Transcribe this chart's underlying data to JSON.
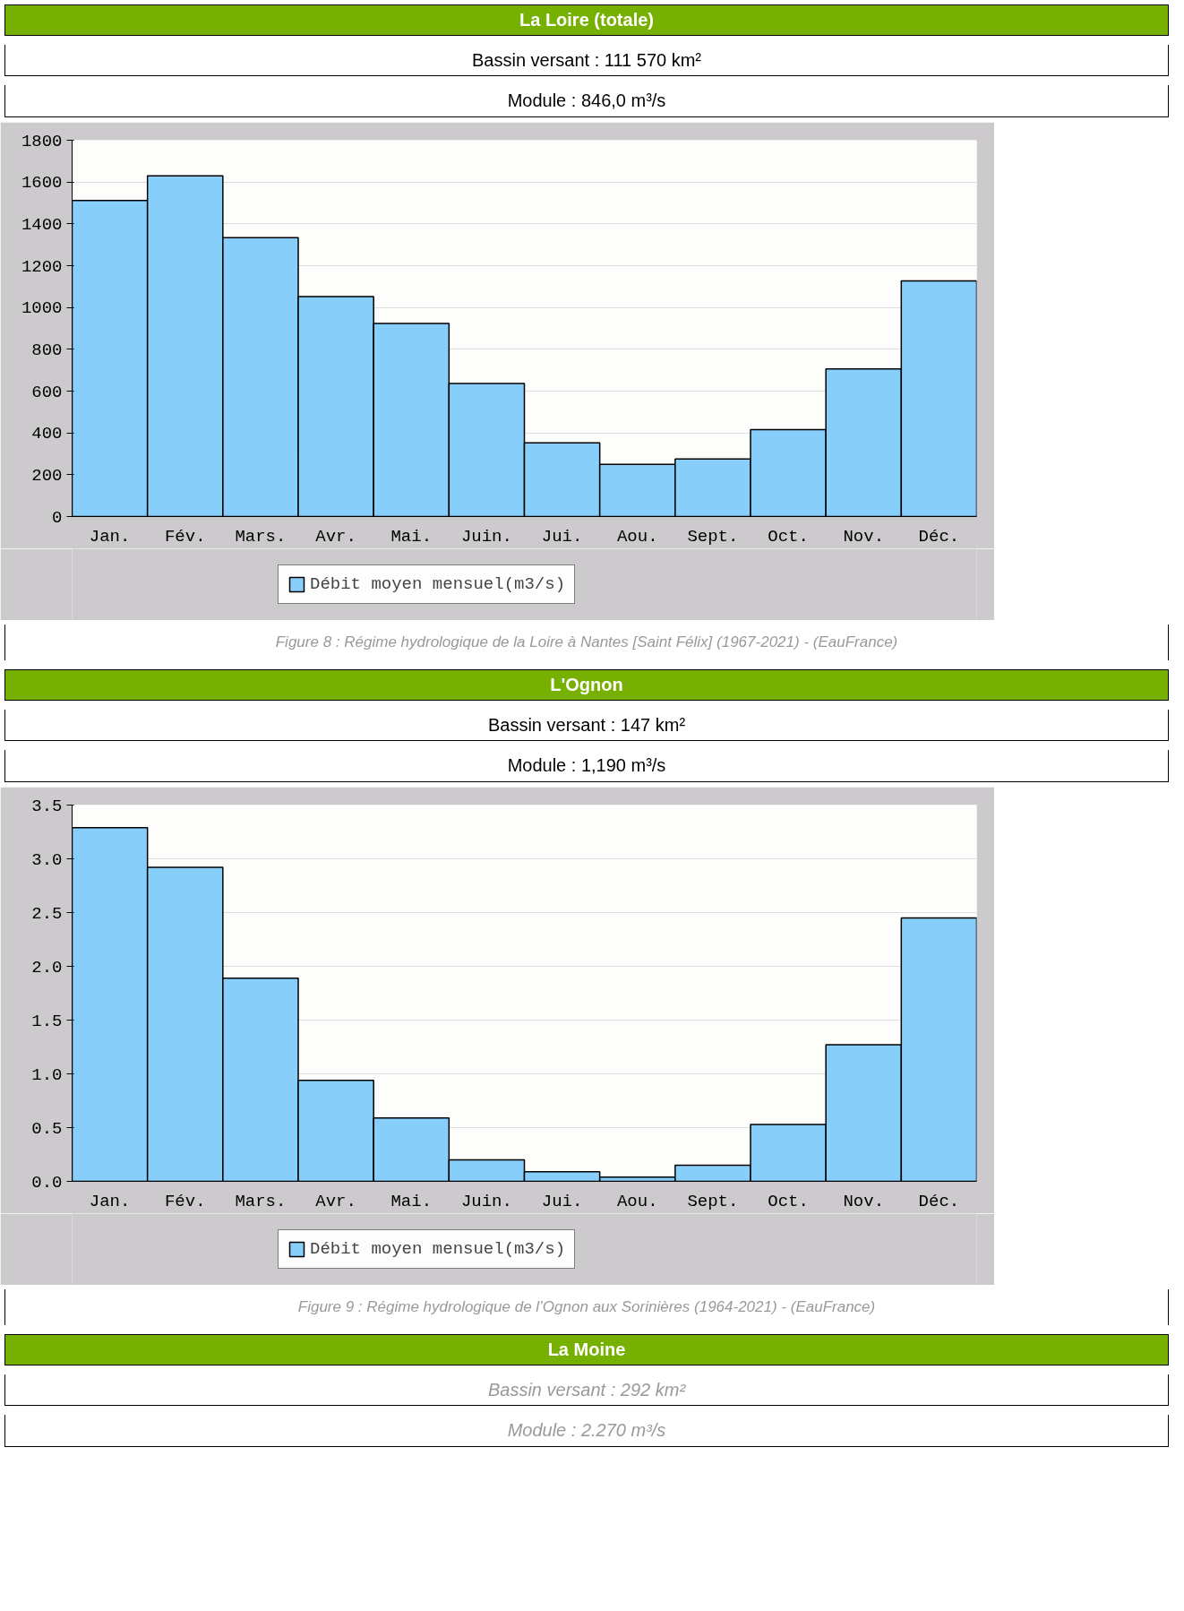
{
  "chart_data": [
    {
      "type": "bar",
      "title": "La Loire (totale)",
      "subtitle": "Bassin versant : 111 570 km²",
      "annotations": [
        "Module : 846,0 m³/s",
        "Figure 8 : Régime hydrologique de la Loire à Nantes [Saint Félix] (1967-2021) - (EauFrance)"
      ],
      "categories": [
        "Jan.",
        "Fév.",
        "Mars.",
        "Avr.",
        "Mai.",
        "Juin.",
        "Jui.",
        "Aou.",
        "Sept.",
        "Oct.",
        "Nov.",
        "Déc."
      ],
      "series": [
        {
          "name": "Débit moyen mensuel(m3/s)",
          "color": "#87cefa",
          "values": [
            1512,
            1630,
            1334,
            1052,
            924,
            636,
            353,
            250,
            275,
            416,
            706,
            1127
          ]
        }
      ],
      "ylim": [
        0,
        1800
      ],
      "yticks": [
        0,
        200,
        400,
        600,
        800,
        1000,
        1200,
        1400,
        1600,
        1800
      ],
      "grid": "y",
      "legend": "bottom"
    },
    {
      "type": "bar",
      "title": "L'Ognon",
      "subtitle": "Bassin versant : 147 km²",
      "annotations": [
        "Module : 1,190 m³/s",
        "Figure 9 : Régime hydrologique de l’Ognon aux Sorinières (1964-2021) - (EauFrance)"
      ],
      "categories": [
        "Jan.",
        "Fév.",
        "Mars.",
        "Avr.",
        "Mai.",
        "Juin.",
        "Jui.",
        "Aou.",
        "Sept.",
        "Oct.",
        "Nov.",
        "Déc."
      ],
      "series": [
        {
          "name": "Débit moyen mensuel(m3/s)",
          "color": "#87cefa",
          "values": [
            3.29,
            2.92,
            1.89,
            0.94,
            0.59,
            0.2,
            0.09,
            0.04,
            0.15,
            0.53,
            1.27,
            2.45
          ]
        }
      ],
      "ylim": [
        0,
        3.5
      ],
      "yticks": [
        {
          "value": 0,
          "label": "0.0"
        },
        {
          "value": 0.5,
          "label": "0.5"
        },
        {
          "value": 1,
          "label": "1.0"
        },
        {
          "value": 1.5,
          "label": "1.5"
        },
        {
          "value": 2,
          "label": "2.0"
        },
        {
          "value": 2.5,
          "label": "2.5"
        },
        {
          "value": 3,
          "label": "3.0"
        },
        {
          "value": 3.5,
          "label": "3.5"
        }
      ],
      "grid": "y",
      "legend": "bottom"
    },
    {
      "type": "other",
      "title": "La Moine",
      "subtitle": "Bassin versant : 292 km²",
      "annotations": [
        "Module : 2.270 m³/s"
      ]
    }
  ]
}
